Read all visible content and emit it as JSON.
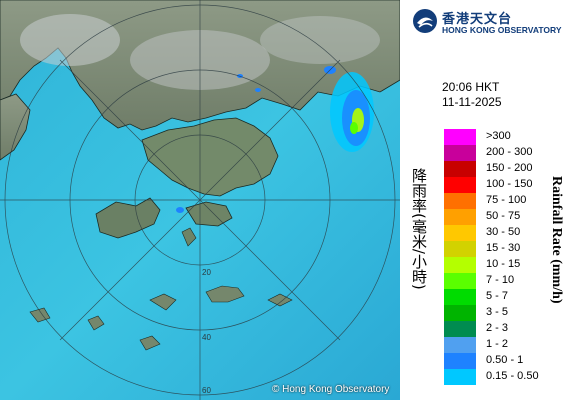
{
  "header": {
    "org_name_cn": "香港天文台",
    "org_name_en": "HONG KONG OBSERVATORY",
    "logo_icon": "hko-logo-icon"
  },
  "timestamp": {
    "time": "20:06 HKT",
    "date": "11-11-2025"
  },
  "map": {
    "copyright": "© Hong Kong Observatory",
    "range_ring_labels": [
      "20",
      "40",
      "60"
    ]
  },
  "legend": {
    "title_cn": "降雨率(毫米/小時)",
    "title_en": "Rainfall Rate (mm/h)",
    "items": [
      {
        "label": ">300",
        "color": "#ff00ff"
      },
      {
        "label": "200 - 300",
        "color": "#c8009b"
      },
      {
        "label": "150 - 200",
        "color": "#c80000"
      },
      {
        "label": "100 - 150",
        "color": "#ff0000"
      },
      {
        "label": "75 - 100",
        "color": "#ff7000"
      },
      {
        "label": "50 - 75",
        "color": "#ffa000"
      },
      {
        "label": "30 - 50",
        "color": "#ffc800"
      },
      {
        "label": "15 - 30",
        "color": "#d2d200"
      },
      {
        "label": "10 - 15",
        "color": "#b4ff00"
      },
      {
        "label": "7 - 10",
        "color": "#5aff00"
      },
      {
        "label": "5 - 7",
        "color": "#00dc00"
      },
      {
        "label": "3 - 5",
        "color": "#00b400"
      },
      {
        "label": "2 - 3",
        "color": "#008c50"
      },
      {
        "label": "1 - 2",
        "color": "#50a0f0"
      },
      {
        "label": "0.50 - 1",
        "color": "#1e82ff"
      },
      {
        "label": "0.15 - 0.50",
        "color": "#00c8ff"
      }
    ]
  }
}
